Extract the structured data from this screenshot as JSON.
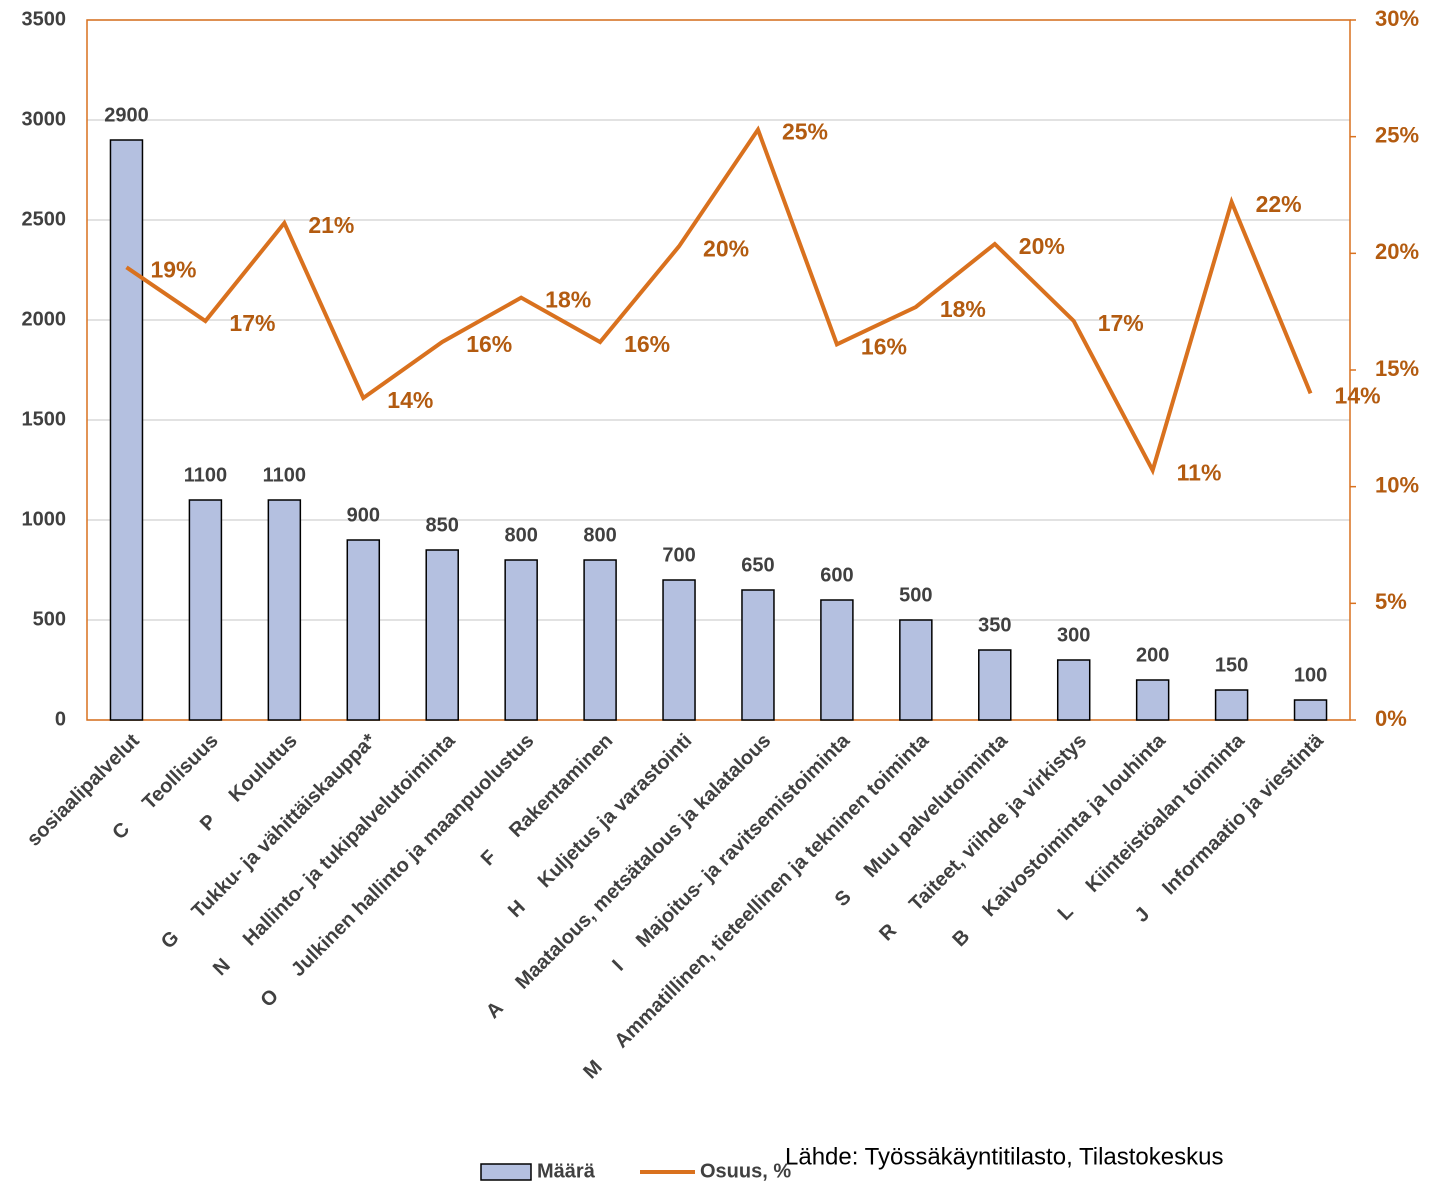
{
  "chart_data": {
    "type": "bar",
    "categories": [
      "sosiaalipalvelut",
      "C     Teollisuus",
      "P     Koulutus",
      "G     Tukku- ja vähittäiskauppa*",
      "N     Hallinto- ja tukipalvelutoiminta",
      "O     Julkinen hallinto ja maanpuolustus",
      "F     Rakentaminen",
      "H     Kuljetus ja varastointi",
      "A     Maatalous, metsätalous ja kalatalous",
      "I     Majoitus- ja ravitsemistoiminta",
      "M     Ammatillinen, tieteellinen ja tekninen toiminta",
      "S     Muu palvelutoiminta",
      "R     Taiteet, viihde ja virkistys",
      "B     Kaivostoiminta ja louhinta",
      "L     Kiinteistöalan toiminta",
      "J     Informaatio ja viestintä"
    ],
    "series": [
      {
        "name": "Määrä",
        "color": "#b4c0e0",
        "values": [
          2900,
          1100,
          1100,
          900,
          850,
          800,
          800,
          700,
          650,
          600,
          500,
          350,
          300,
          200,
          150,
          100
        ]
      },
      {
        "name": "Osuus, %",
        "color": "#d9711e",
        "axis": "y2",
        "values": [
          19.4,
          17.1,
          21.3,
          13.8,
          16.2,
          18.1,
          16.2,
          20.3,
          25.3,
          16.1,
          17.7,
          20.4,
          17.1,
          10.7,
          22.2,
          14.0
        ],
        "value_labels": [
          "19%",
          "17%",
          "21%",
          "14%",
          "16%",
          "18%",
          "16%",
          "20%",
          "25%",
          "16%",
          "18%",
          "20%",
          "17%",
          "11%",
          "22%",
          "14%"
        ]
      }
    ],
    "ylim": [
      0,
      3500
    ],
    "yticks": [
      0,
      500,
      1000,
      1500,
      2000,
      2500,
      3000,
      3500
    ],
    "y2lim": [
      0,
      30
    ],
    "y2ticks": [
      {
        "value": 0,
        "label": "0%"
      },
      {
        "value": 5,
        "label": "5%"
      },
      {
        "value": 10,
        "label": "10%"
      },
      {
        "value": 15,
        "label": "15%"
      },
      {
        "value": 20,
        "label": "20%"
      },
      {
        "value": 25,
        "label": "25%"
      },
      {
        "value": 30,
        "label": "30%"
      }
    ],
    "grid": true,
    "source": "Lähde: Työssäkäyntitilasto, Tilastokeskus"
  }
}
